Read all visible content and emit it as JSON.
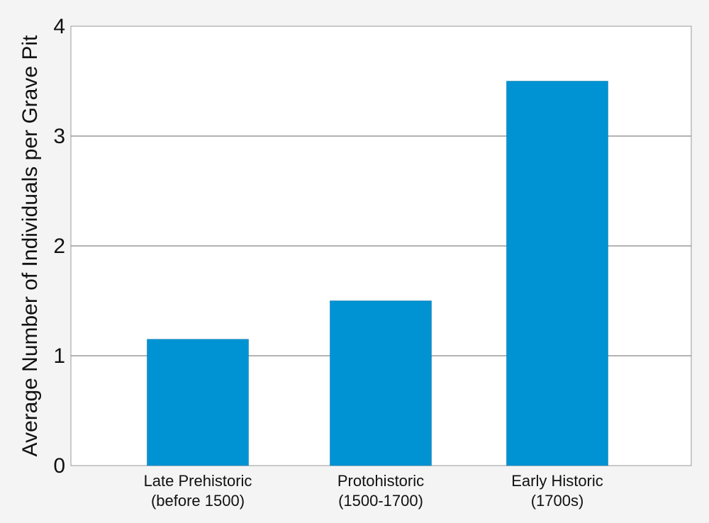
{
  "chart_data": {
    "type": "bar",
    "categories": [
      {
        "line1": "Late Prehistoric",
        "line2": "(before 1500)"
      },
      {
        "line1": "Protohistoric",
        "line2": "(1500-1700)"
      },
      {
        "line1": "Early Historic",
        "line2": "(1700s)"
      }
    ],
    "values": [
      1.15,
      1.5,
      3.5
    ],
    "ylabel": "Average Number of Individuals per Grave Pit",
    "xlabel": "",
    "ylim": [
      0,
      4
    ],
    "yticks": [
      "0",
      "1",
      "2",
      "3",
      "4"
    ],
    "grid": true,
    "bar_color": "#0093d3",
    "grid_color": "#9a9a9a",
    "plot_background": "#ffffff"
  }
}
